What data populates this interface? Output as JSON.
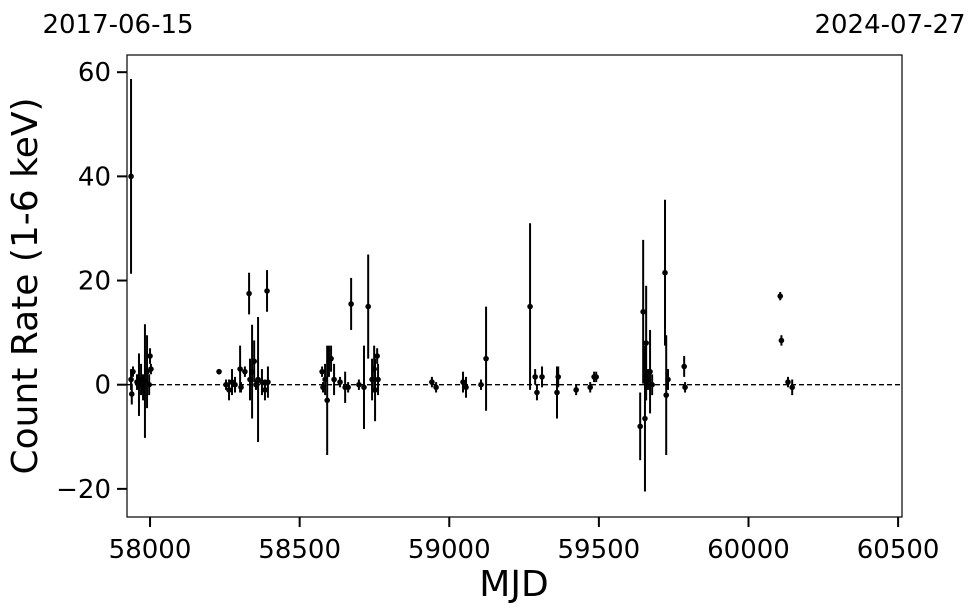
{
  "chart_data": {
    "type": "errorbar",
    "xlabel": "MJD",
    "ylabel": "Count Rate (1-6 keV)",
    "annotations": [
      "2017-06-15",
      "2024-07-27"
    ],
    "xlim": [
      57923,
      60513
    ],
    "ylim": [
      -25.4,
      63.3
    ],
    "xticks": [
      58000,
      58500,
      59000,
      59500,
      60000,
      60500
    ],
    "yticks": [
      {
        "value": -20,
        "label": "−20"
      },
      0,
      20,
      40,
      60
    ],
    "hline": 0,
    "color": "#000000",
    "x": [
      57936.5,
      57936.5,
      57939,
      57943,
      57956.5,
      57963,
      57970,
      57976.6,
      57983,
      57990,
      57997,
      58000,
      58003,
      58230.6,
      58254,
      58264,
      58274,
      58284,
      58301,
      58304,
      58317,
      58331,
      58334,
      58341,
      58348,
      58354,
      58361,
      58374,
      58384,
      58391,
      58394,
      58575,
      58578,
      58585,
      58592,
      58598,
      58605,
      58615,
      58635,
      58652,
      58662,
      58672,
      58698,
      58715,
      58729,
      58742,
      58749,
      58752,
      58759,
      58762,
      58942,
      58956,
      59046,
      59056,
      59106,
      59123,
      59270,
      59287,
      59293,
      59310,
      59360,
      59364,
      59424,
      59471,
      59484,
      59491,
      59638,
      59648,
      59654,
      59658,
      59664,
      59671,
      59678,
      59721,
      59725,
      59731,
      59785,
      59788,
      60106,
      60110,
      60132,
      60146
    ],
    "y": [
      40,
      1,
      -1.8,
      2.5,
      0.5,
      0,
      1,
      -0.5,
      0.7,
      2.5,
      0,
      5.5,
      3,
      2.5,
      0,
      -1,
      0.5,
      0,
      3,
      -0.5,
      2.5,
      17.5,
      1,
      2.5,
      4.5,
      0,
      1,
      0.5,
      -1,
      18,
      0.5,
      2.5,
      -0.5,
      1,
      -3,
      4.5,
      5,
      1,
      0.5,
      -0.5,
      -0.5,
      15.5,
      0,
      -0.5,
      15,
      1,
      3,
      -1,
      5.5,
      1,
      0.5,
      -0.5,
      0.5,
      -0.5,
      0,
      5,
      15,
      1.5,
      -1.5,
      1.5,
      -1.5,
      1.5,
      -1,
      -0.5,
      1.5,
      1.5,
      -8,
      14,
      -6.5,
      8,
      1,
      2.5,
      0,
      21.5,
      -2,
      1,
      3.5,
      -0.5,
      17,
      8.5,
      0.5,
      -0.5
    ],
    "yerr": [
      18.7,
      2,
      2,
      1,
      1.5,
      6,
      3,
      2.5,
      10.9,
      7,
      2,
      1.5,
      1,
      0.5,
      1,
      2,
      2.5,
      1.5,
      4.5,
      1,
      1,
      4,
      4,
      9,
      4,
      1,
      12,
      2.5,
      2,
      4,
      3,
      1,
      1,
      3,
      10.5,
      3,
      2.5,
      3,
      1,
      3,
      1,
      5,
      1,
      8,
      10,
      4,
      4.5,
      6,
      1.5,
      3,
      1,
      1,
      2,
      2,
      1,
      10,
      16,
      1.5,
      1.5,
      2,
      5,
      2,
      1,
      1,
      1,
      1,
      6.5,
      13.8,
      14,
      11,
      2,
      8,
      2,
      14,
      11.5,
      2,
      2,
      1,
      0.8,
      1,
      1,
      1.5
    ]
  }
}
